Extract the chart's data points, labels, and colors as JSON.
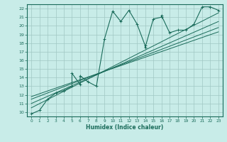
{
  "xlabel": "Humidex (Indice chaleur)",
  "ylabel": "",
  "bg_color": "#c8ece8",
  "grid_color": "#a0c8c4",
  "line_color": "#1a6b5a",
  "xlim": [
    -0.5,
    23.5
  ],
  "ylim": [
    9.5,
    22.5
  ],
  "xticks": [
    0,
    1,
    2,
    3,
    4,
    5,
    6,
    7,
    8,
    9,
    10,
    11,
    12,
    13,
    14,
    15,
    16,
    17,
    18,
    19,
    20,
    21,
    22,
    23
  ],
  "yticks": [
    10,
    11,
    12,
    13,
    14,
    15,
    16,
    17,
    18,
    19,
    20,
    21,
    22
  ],
  "scatter_x": [
    0,
    1,
    2,
    3,
    4,
    5,
    5,
    6,
    6,
    7,
    8,
    9,
    10,
    11,
    12,
    13,
    14,
    14,
    15,
    16,
    16,
    17,
    18,
    19,
    20,
    21,
    22,
    23
  ],
  "scatter_y": [
    9.8,
    10.2,
    11.5,
    12.2,
    12.5,
    13.0,
    14.5,
    13.2,
    14.2,
    13.5,
    13.0,
    18.5,
    21.7,
    20.5,
    21.8,
    20.2,
    17.7,
    17.5,
    20.8,
    21.0,
    21.2,
    19.2,
    19.5,
    19.5,
    20.2,
    22.2,
    22.2,
    21.8
  ],
  "line1_x": [
    0,
    23
  ],
  "line1_y": [
    11.5,
    19.8
  ],
  "line2_x": [
    0,
    23
  ],
  "line2_y": [
    11.0,
    20.5
  ],
  "line3_x": [
    0,
    23
  ],
  "line3_y": [
    10.5,
    21.5
  ],
  "line4_x": [
    0,
    23
  ],
  "line4_y": [
    11.8,
    19.3
  ]
}
